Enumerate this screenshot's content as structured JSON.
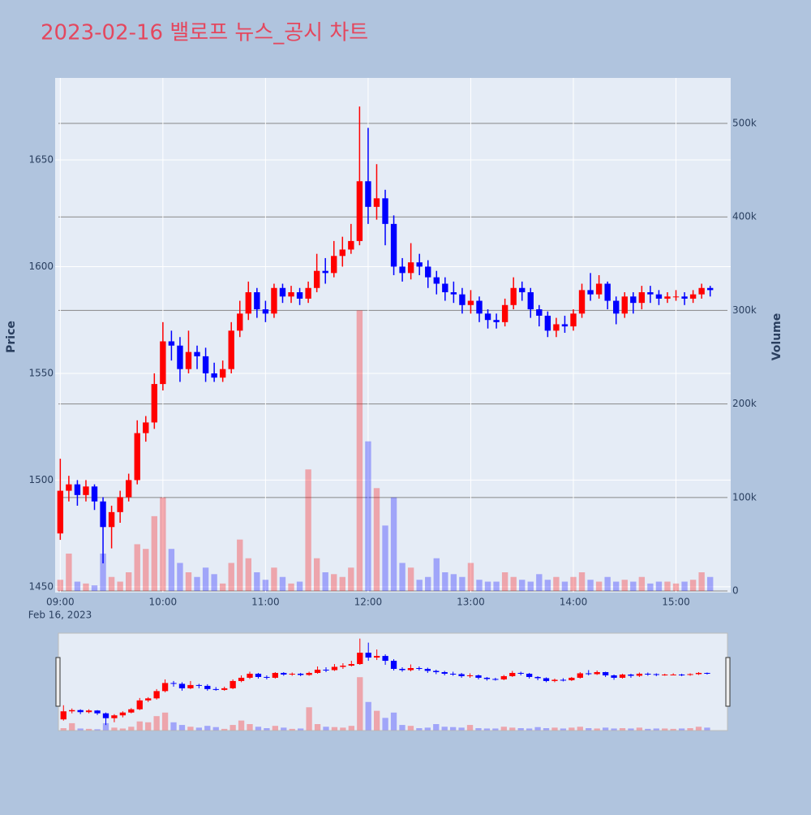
{
  "chart_data": {
    "type": "candlestick",
    "title": "2023-02-16 밸로프 뉴스_공시 차트",
    "y_title": "Price",
    "y2_title": "Volume",
    "x_date": "Feb 16, 2023",
    "increasing_color": "#ff0000",
    "decreasing_color": "#0000ff",
    "x": [
      "09:00",
      "09:05",
      "09:10",
      "09:15",
      "09:20",
      "09:25",
      "09:30",
      "09:35",
      "09:40",
      "09:45",
      "09:50",
      "09:55",
      "10:00",
      "10:05",
      "10:10",
      "10:15",
      "10:20",
      "10:25",
      "10:30",
      "10:35",
      "10:40",
      "10:45",
      "10:50",
      "10:55",
      "11:00",
      "11:05",
      "11:10",
      "11:15",
      "11:20",
      "11:25",
      "11:30",
      "11:35",
      "11:40",
      "11:45",
      "11:50",
      "11:55",
      "12:00",
      "12:05",
      "12:10",
      "12:15",
      "12:20",
      "12:25",
      "12:30",
      "12:35",
      "12:40",
      "12:45",
      "12:50",
      "12:55",
      "13:00",
      "13:05",
      "13:10",
      "13:15",
      "13:20",
      "13:25",
      "13:30",
      "13:35",
      "13:40",
      "13:45",
      "13:50",
      "13:55",
      "14:00",
      "14:05",
      "14:10",
      "14:15",
      "14:20",
      "14:25",
      "14:30",
      "14:35",
      "14:40",
      "14:45",
      "14:50",
      "14:55",
      "15:00",
      "15:05",
      "15:10",
      "15:15",
      "15:20"
    ],
    "open": [
      1475,
      1495,
      1498,
      1493,
      1497,
      1490,
      1478,
      1485,
      1492,
      1500,
      1522,
      1527,
      1545,
      1565,
      1563,
      1552,
      1560,
      1558,
      1550,
      1548,
      1552,
      1570,
      1578,
      1588,
      1580,
      1578,
      1590,
      1586,
      1588,
      1585,
      1590,
      1598,
      1597,
      1605,
      1608,
      1612,
      1640,
      1628,
      1632,
      1620,
      1600,
      1597,
      1602,
      1600,
      1595,
      1592,
      1588,
      1587,
      1582,
      1584,
      1578,
      1575,
      1574,
      1582,
      1590,
      1588,
      1580,
      1577,
      1570,
      1573,
      1572,
      1578,
      1589,
      1587,
      1592,
      1584,
      1578,
      1586,
      1583,
      1588,
      1587,
      1585,
      1586,
      1586,
      1585,
      1587,
      1590
    ],
    "high": [
      1510,
      1502,
      1500,
      1500,
      1498,
      1492,
      1488,
      1495,
      1503,
      1528,
      1530,
      1550,
      1574,
      1570,
      1567,
      1570,
      1563,
      1562,
      1555,
      1556,
      1574,
      1584,
      1593,
      1590,
      1584,
      1592,
      1592,
      1591,
      1590,
      1593,
      1606,
      1604,
      1612,
      1614,
      1620,
      1675,
      1665,
      1648,
      1636,
      1624,
      1604,
      1611,
      1606,
      1603,
      1598,
      1595,
      1593,
      1590,
      1589,
      1586,
      1580,
      1578,
      1585,
      1595,
      1593,
      1590,
      1582,
      1579,
      1576,
      1577,
      1580,
      1592,
      1597,
      1596,
      1593,
      1586,
      1588,
      1588,
      1591,
      1591,
      1589,
      1588,
      1589,
      1588,
      1589,
      1592,
      1591
    ],
    "low": [
      1472,
      1490,
      1488,
      1490,
      1486,
      1461,
      1468,
      1480,
      1490,
      1498,
      1518,
      1524,
      1542,
      1556,
      1546,
      1550,
      1552,
      1546,
      1546,
      1546,
      1550,
      1567,
      1575,
      1576,
      1574,
      1576,
      1583,
      1583,
      1582,
      1583,
      1588,
      1592,
      1595,
      1600,
      1606,
      1610,
      1620,
      1622,
      1610,
      1596,
      1593,
      1594,
      1596,
      1590,
      1587,
      1584,
      1583,
      1578,
      1578,
      1574,
      1571,
      1571,
      1572,
      1580,
      1584,
      1576,
      1572,
      1567,
      1567,
      1569,
      1570,
      1576,
      1584,
      1585,
      1580,
      1573,
      1576,
      1578,
      1580,
      1583,
      1582,
      1583,
      1584,
      1582,
      1583,
      1585,
      1586
    ],
    "close": [
      1495,
      1498,
      1493,
      1497,
      1490,
      1478,
      1485,
      1492,
      1500,
      1522,
      1527,
      1545,
      1565,
      1563,
      1552,
      1560,
      1558,
      1550,
      1548,
      1552,
      1570,
      1578,
      1588,
      1580,
      1578,
      1590,
      1586,
      1588,
      1585,
      1590,
      1598,
      1597,
      1605,
      1608,
      1612,
      1640,
      1628,
      1632,
      1620,
      1600,
      1597,
      1602,
      1600,
      1595,
      1592,
      1588,
      1587,
      1582,
      1584,
      1578,
      1575,
      1574,
      1582,
      1590,
      1588,
      1580,
      1577,
      1570,
      1573,
      1572,
      1578,
      1589,
      1587,
      1592,
      1584,
      1578,
      1586,
      1583,
      1588,
      1587,
      1585,
      1586,
      1586,
      1585,
      1587,
      1590,
      1589
    ],
    "volume": [
      12000,
      40000,
      10000,
      8000,
      6000,
      40000,
      15000,
      10000,
      20000,
      50000,
      45000,
      80000,
      100000,
      45000,
      30000,
      20000,
      15000,
      25000,
      18000,
      8000,
      30000,
      55000,
      35000,
      20000,
      12000,
      25000,
      15000,
      8000,
      10000,
      130000,
      35000,
      20000,
      18000,
      15000,
      25000,
      300000,
      160000,
      110000,
      70000,
      100000,
      30000,
      25000,
      12000,
      15000,
      35000,
      20000,
      18000,
      15000,
      30000,
      12000,
      10000,
      10000,
      20000,
      15000,
      12000,
      10000,
      18000,
      12000,
      15000,
      10000,
      15000,
      20000,
      12000,
      10000,
      15000,
      10000,
      12000,
      10000,
      15000,
      8000,
      10000,
      10000,
      8000,
      10000,
      12000,
      20000,
      15000
    ],
    "xlim": [
      "08:57",
      "15:32"
    ],
    "xticks": [
      "09:00",
      "10:00",
      "11:00",
      "12:00",
      "13:00",
      "14:00",
      "15:00"
    ],
    "ylim": [
      1447.3,
      1688.4
    ],
    "yticks": [
      1450,
      1500,
      1550,
      1600,
      1650
    ],
    "y2lim": [
      -1700,
      548600
    ],
    "y2ticks": [
      0,
      {
        "value": 100000,
        "label": "100k"
      },
      {
        "value": 200000,
        "label": "200k"
      },
      {
        "value": 300000,
        "label": "300k"
      },
      {
        "value": 400000,
        "label": "400k"
      },
      {
        "value": 500000,
        "label": "500k"
      }
    ],
    "grid": true,
    "rangeslider": true
  }
}
